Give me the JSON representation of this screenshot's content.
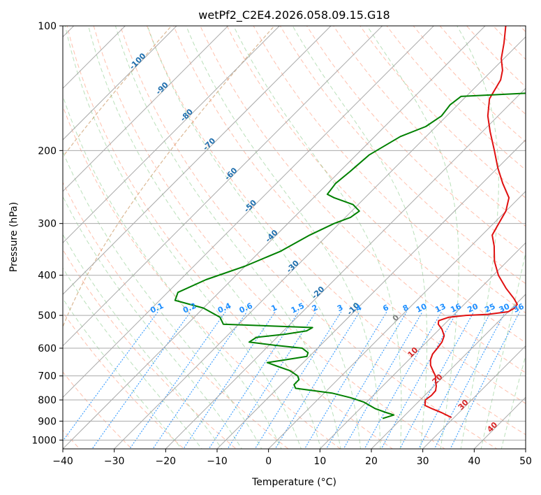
{
  "chart_data": {
    "type": "line",
    "subtype": "skew-t log-p diagram",
    "title": "wetPf2_C2E4.2026.058.09.15.G18",
    "xlabel": "Temperature (°C)",
    "ylabel": "Pressure (hPa)",
    "xlim": [
      -40,
      50
    ],
    "ylim": [
      1050,
      100
    ],
    "y_scale": "log",
    "x_ticks": [
      -40,
      -30,
      -20,
      -10,
      0,
      10,
      20,
      30,
      40,
      50
    ],
    "y_ticks": [
      100,
      200,
      300,
      400,
      500,
      600,
      700,
      800,
      900,
      1000
    ],
    "grid": true,
    "colors": {
      "temperature": "#e01010",
      "dewpoint": "#008000",
      "isotherm": "#a9a9a9",
      "dry_adiabat": "#ff8c69",
      "moist_adiabat": "#66bb66",
      "mixing_ratio": "#1e8fff",
      "hgz": "#d2a679",
      "below_freezing_label": "#1f6fae",
      "above_freezing_label": "#d62728",
      "zero_label": "#808080"
    },
    "isotherm_labels": [
      {
        "t": -100,
        "p": 123
      },
      {
        "t": -90,
        "p": 143
      },
      {
        "t": -80,
        "p": 166
      },
      {
        "t": -70,
        "p": 195
      },
      {
        "t": -60,
        "p": 230
      },
      {
        "t": -50,
        "p": 275
      },
      {
        "t": -40,
        "p": 325
      },
      {
        "t": -30,
        "p": 385
      },
      {
        "t": -20,
        "p": 445
      },
      {
        "t": -10,
        "p": 487
      },
      {
        "t": 0,
        "p": 512
      },
      {
        "t": 10,
        "p": 620
      },
      {
        "t": 20,
        "p": 720
      },
      {
        "t": 30,
        "p": 830
      },
      {
        "t": 40,
        "p": 940
      }
    ],
    "mixing_ratio_labels": [
      "0.1",
      "0.2",
      "0.4",
      "0.6",
      "1",
      "1.5",
      "2",
      "3",
      "4",
      "6",
      "8",
      "10",
      "13",
      "16",
      "20",
      "25",
      "30",
      "36"
    ],
    "mixing_ratio_values": [
      0.1,
      0.2,
      0.4,
      0.6,
      1,
      1.5,
      2,
      3,
      4,
      6,
      8,
      10,
      13,
      16,
      20,
      25,
      30,
      36
    ],
    "mixing_ratio_label_pressure": 490,
    "series": [
      {
        "role": "temperature",
        "points": [
          [
            882,
            29.5
          ],
          [
            860,
            26.8
          ],
          [
            840,
            24.0
          ],
          [
            825,
            22.0
          ],
          [
            800,
            21.0
          ],
          [
            780,
            21.3
          ],
          [
            760,
            21.2
          ],
          [
            740,
            20.4
          ],
          [
            720,
            19.3
          ],
          [
            700,
            18.3
          ],
          [
            680,
            16.8
          ],
          [
            660,
            15.3
          ],
          [
            640,
            14.2
          ],
          [
            620,
            13.5
          ],
          [
            600,
            13.3
          ],
          [
            580,
            13.0
          ],
          [
            560,
            12.2
          ],
          [
            540,
            10.5
          ],
          [
            525,
            8.8
          ],
          [
            515,
            8.2
          ],
          [
            505,
            9.5
          ],
          [
            500,
            12.5
          ],
          [
            497,
            16.5
          ],
          [
            490,
            20.0
          ],
          [
            480,
            20.5
          ],
          [
            470,
            20.3
          ],
          [
            455,
            18.5
          ],
          [
            430,
            15.0
          ],
          [
            400,
            11.0
          ],
          [
            370,
            7.5
          ],
          [
            340,
            4.5
          ],
          [
            320,
            2.0
          ],
          [
            300,
            1.0
          ],
          [
            280,
            0.0
          ],
          [
            260,
            -2.0
          ],
          [
            240,
            -6.0
          ],
          [
            220,
            -10.0
          ],
          [
            200,
            -14.0
          ],
          [
            180,
            -18.5
          ],
          [
            165,
            -22.0
          ],
          [
            150,
            -25.0
          ],
          [
            135,
            -26.5
          ],
          [
            128,
            -28.0
          ],
          [
            120,
            -30.5
          ],
          [
            110,
            -33.0
          ],
          [
            100,
            -36.0
          ]
        ]
      },
      {
        "role": "dewpoint",
        "points": [
          [
            887,
            16.3
          ],
          [
            870,
            17.8
          ],
          [
            858,
            15.8
          ],
          [
            840,
            13.0
          ],
          [
            810,
            9.5
          ],
          [
            790,
            6.0
          ],
          [
            770,
            1.5
          ],
          [
            750,
            -6.5
          ],
          [
            735,
            -7.5
          ],
          [
            715,
            -7.5
          ],
          [
            700,
            -8.5
          ],
          [
            680,
            -11.0
          ],
          [
            665,
            -14.0
          ],
          [
            650,
            -17.0
          ],
          [
            640,
            -14.0
          ],
          [
            628,
            -10.5
          ],
          [
            615,
            -11.0
          ],
          [
            600,
            -13.0
          ],
          [
            590,
            -19.0
          ],
          [
            580,
            -24.5
          ],
          [
            565,
            -24.0
          ],
          [
            555,
            -19.0
          ],
          [
            545,
            -15.5
          ],
          [
            535,
            -15.0
          ],
          [
            525,
            -33.0
          ],
          [
            505,
            -35.0
          ],
          [
            480,
            -40.0
          ],
          [
            460,
            -47.0
          ],
          [
            440,
            -48.0
          ],
          [
            410,
            -45.0
          ],
          [
            380,
            -40.0
          ],
          [
            350,
            -36.0
          ],
          [
            320,
            -33.5
          ],
          [
            300,
            -31.0
          ],
          [
            290,
            -29.0
          ],
          [
            280,
            -28.5
          ],
          [
            270,
            -31.0
          ],
          [
            260,
            -36.0
          ],
          [
            255,
            -38.0
          ],
          [
            240,
            -38.5
          ],
          [
            225,
            -38.0
          ],
          [
            205,
            -37.5
          ],
          [
            185,
            -35.0
          ],
          [
            175,
            -32.0
          ],
          [
            165,
            -31.0
          ],
          [
            155,
            -31.5
          ],
          [
            148,
            -31.0
          ],
          [
            145,
            -17.0
          ],
          [
            140,
            -9.0
          ],
          [
            130,
            -6.5
          ],
          [
            120,
            -8.0
          ],
          [
            110,
            -9.5
          ],
          [
            100,
            -11.5
          ]
        ]
      }
    ]
  }
}
